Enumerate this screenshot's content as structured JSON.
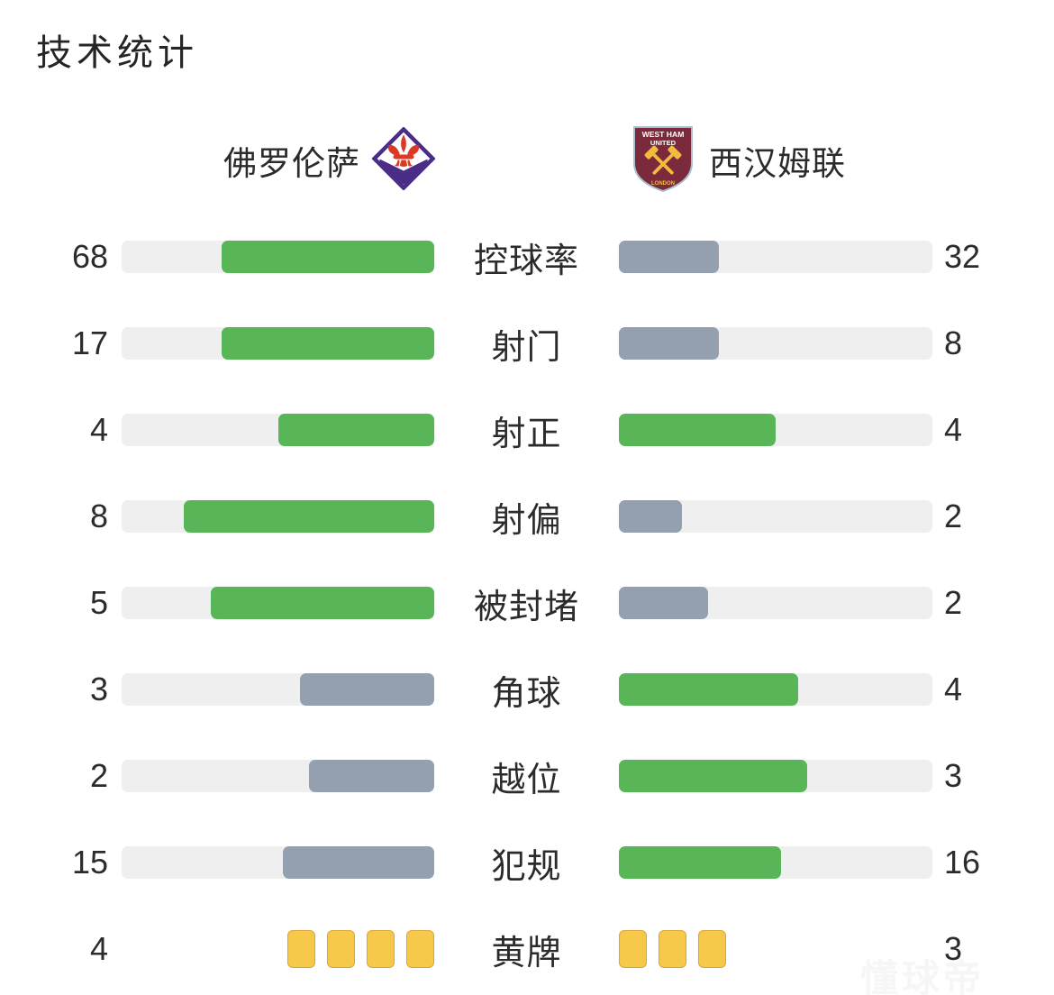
{
  "title": "技术统计",
  "teams": {
    "home": {
      "name": "佛罗伦萨"
    },
    "away": {
      "name": "西汉姆联"
    }
  },
  "colors": {
    "green": "#58b658",
    "gray": "#94a0af",
    "track": "#efefef",
    "yellow": "#f6c94b",
    "yellow_border": "#dea43c",
    "home_crest_purple": "#4b2c86",
    "home_crest_red": "#dd3826",
    "away_crest_claret": "#7a2a3a",
    "away_crest_gold": "#f1bb3f"
  },
  "watermark": "懂球帝",
  "chart_data": {
    "type": "bar",
    "title": "技术统计",
    "legend": [
      "佛罗伦萨",
      "西汉姆联"
    ],
    "rows": [
      {
        "label": "控球率",
        "home": 68,
        "away": 32
      },
      {
        "label": "射门",
        "home": 17,
        "away": 8
      },
      {
        "label": "射正",
        "home": 4,
        "away": 4
      },
      {
        "label": "射偏",
        "home": 8,
        "away": 2
      },
      {
        "label": "被封堵",
        "home": 5,
        "away": 2
      },
      {
        "label": "角球",
        "home": 3,
        "away": 4
      },
      {
        "label": "越位",
        "home": 2,
        "away": 3
      },
      {
        "label": "犯规",
        "home": 15,
        "away": 16
      },
      {
        "label": "黄牌",
        "home": 4,
        "away": 3,
        "style": "cards"
      }
    ]
  }
}
